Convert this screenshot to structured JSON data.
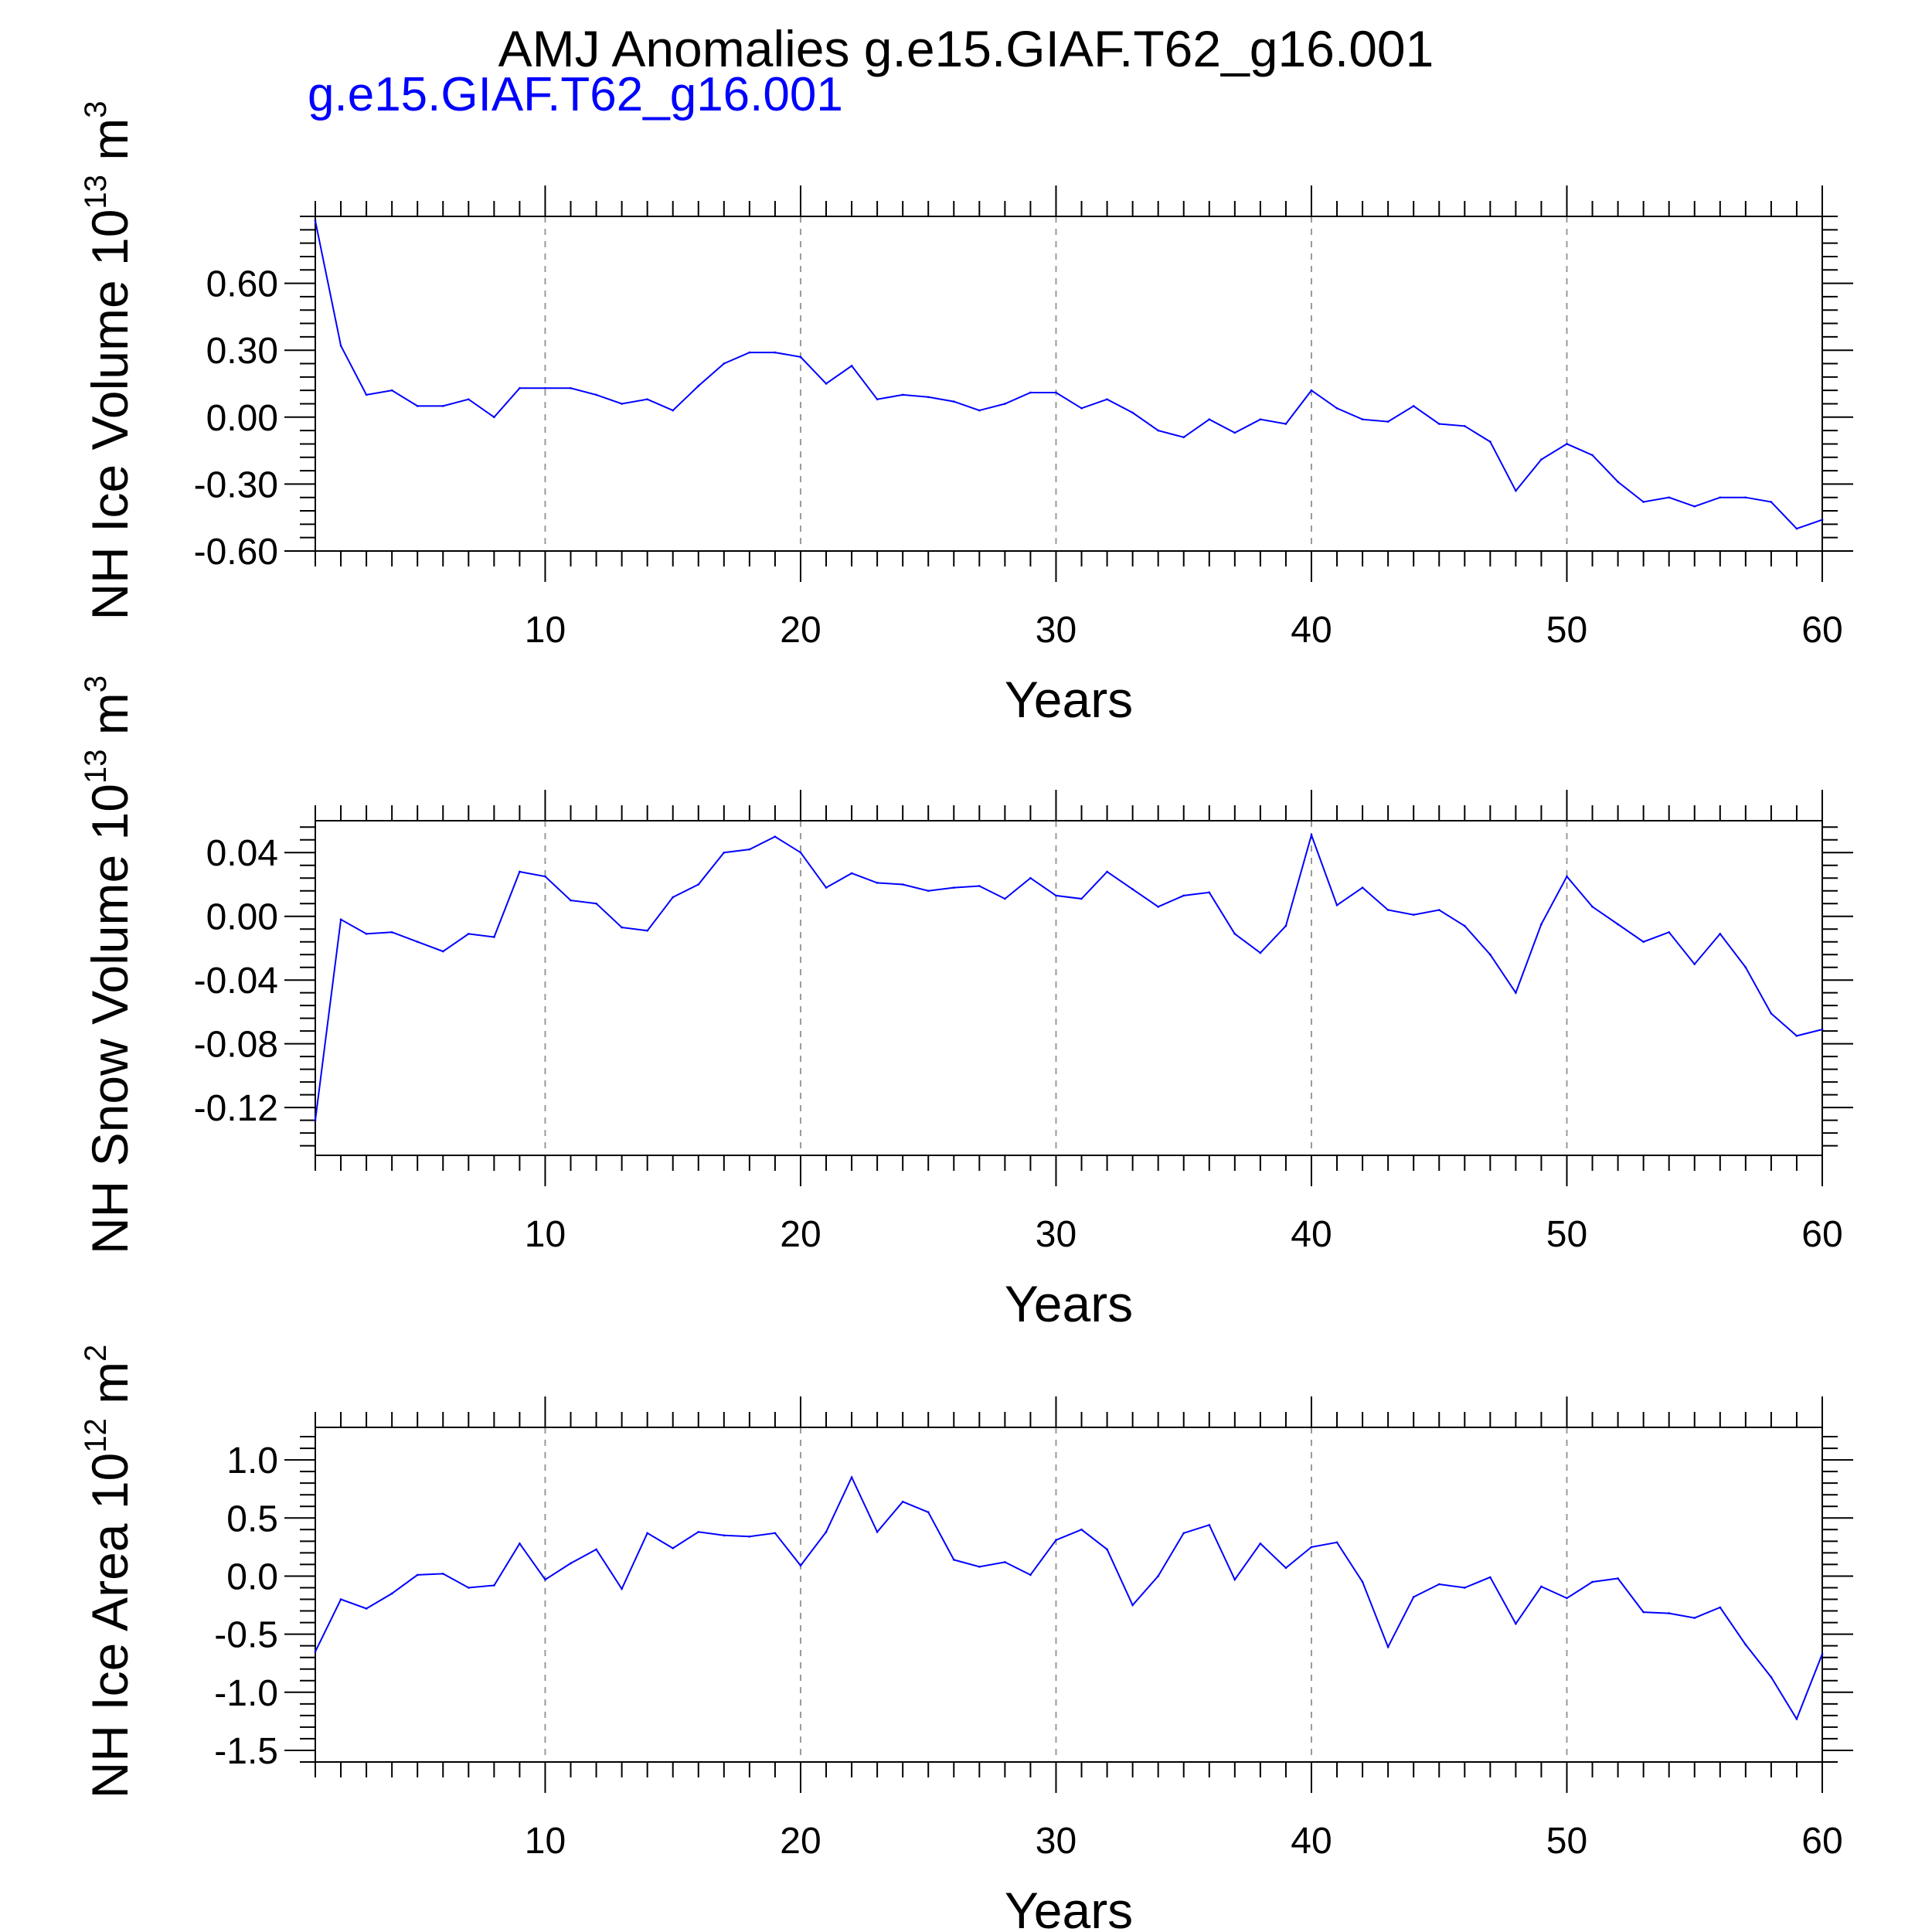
{
  "title": "AMJ Anomalies g.e15.GIAF.T62_g16.001",
  "subtitle": "g.e15.GIAF.T62_g16.001",
  "series_color": "#0000ff",
  "chart_data": [
    {
      "type": "line",
      "ylabel": "NH Ice Volume 10",
      "ylabel_exp": "13",
      "ylabel_unit": " m",
      "ylabel_unit_exp": "3",
      "xlabel": "Years",
      "xlim": [
        1,
        60
      ],
      "ylim": [
        -0.6,
        0.9
      ],
      "xticks": [
        10,
        20,
        30,
        40,
        50,
        60
      ],
      "yticks": [
        -0.6,
        -0.3,
        0.0,
        0.3,
        0.6
      ],
      "ytick_labels": [
        "-0.60",
        "-0.30",
        "0.00",
        "0.30",
        "0.60"
      ],
      "grid": "dashed vertical at major x ticks",
      "x": [
        1,
        2,
        3,
        4,
        5,
        6,
        7,
        8,
        9,
        10,
        11,
        12,
        13,
        14,
        15,
        16,
        17,
        18,
        19,
        20,
        21,
        22,
        23,
        24,
        25,
        26,
        27,
        28,
        29,
        30,
        31,
        32,
        33,
        34,
        35,
        36,
        37,
        38,
        39,
        40,
        41,
        42,
        43,
        44,
        45,
        46,
        47,
        48,
        49,
        50,
        51,
        52,
        53,
        54,
        55,
        56,
        57,
        58,
        59,
        60
      ],
      "values": [
        0.88,
        0.32,
        0.1,
        0.12,
        0.05,
        0.05,
        0.08,
        0.0,
        0.13,
        0.13,
        0.13,
        0.1,
        0.06,
        0.08,
        0.03,
        0.14,
        0.24,
        0.29,
        0.29,
        0.27,
        0.15,
        0.23,
        0.08,
        0.1,
        0.09,
        0.07,
        0.03,
        0.06,
        0.11,
        0.11,
        0.04,
        0.08,
        0.02,
        -0.06,
        -0.09,
        -0.01,
        -0.07,
        -0.01,
        -0.03,
        0.12,
        0.04,
        -0.01,
        -0.02,
        0.05,
        -0.03,
        -0.04,
        -0.11,
        -0.33,
        -0.19,
        -0.12,
        -0.17,
        -0.29,
        -0.38,
        -0.36,
        -0.4,
        -0.36,
        -0.36,
        -0.38,
        -0.5,
        -0.46
      ]
    },
    {
      "type": "line",
      "ylabel": "NH Snow Volume 10",
      "ylabel_exp": "13",
      "ylabel_unit": " m",
      "ylabel_unit_exp": "3",
      "xlabel": "Years",
      "xlim": [
        1,
        60
      ],
      "ylim": [
        -0.15,
        0.06
      ],
      "xticks": [
        10,
        20,
        30,
        40,
        50,
        60
      ],
      "yticks": [
        -0.12,
        -0.08,
        -0.04,
        0.0,
        0.04
      ],
      "ytick_labels": [
        "-0.12",
        "-0.08",
        "-0.04",
        "0.00",
        "0.04"
      ],
      "grid": "dashed vertical at major x ticks",
      "x": [
        1,
        2,
        3,
        4,
        5,
        6,
        7,
        8,
        9,
        10,
        11,
        12,
        13,
        14,
        15,
        16,
        17,
        18,
        19,
        20,
        21,
        22,
        23,
        24,
        25,
        26,
        27,
        28,
        29,
        30,
        31,
        32,
        33,
        34,
        35,
        36,
        37,
        38,
        39,
        40,
        41,
        42,
        43,
        44,
        45,
        46,
        47,
        48,
        49,
        50,
        51,
        52,
        53,
        54,
        55,
        56,
        57,
        58,
        59,
        60
      ],
      "values": [
        -0.128,
        -0.002,
        -0.011,
        -0.01,
        -0.016,
        -0.022,
        -0.011,
        -0.013,
        0.028,
        0.025,
        0.01,
        0.008,
        -0.007,
        -0.009,
        0.012,
        0.02,
        0.04,
        0.042,
        0.05,
        0.04,
        0.018,
        0.027,
        0.021,
        0.02,
        0.016,
        0.018,
        0.019,
        0.011,
        0.024,
        0.013,
        0.011,
        0.028,
        0.017,
        0.006,
        0.013,
        0.015,
        -0.011,
        -0.023,
        -0.006,
        0.051,
        0.007,
        0.018,
        0.004,
        0.001,
        0.004,
        -0.006,
        -0.024,
        -0.048,
        -0.005,
        0.025,
        0.006,
        -0.005,
        -0.016,
        -0.01,
        -0.03,
        -0.011,
        -0.032,
        -0.061,
        -0.075,
        -0.071
      ]
    },
    {
      "type": "line",
      "ylabel": "NH Ice Area 10",
      "ylabel_exp": "12",
      "ylabel_unit": " m",
      "ylabel_unit_exp": "2",
      "xlabel": "Years",
      "xlim": [
        1,
        60
      ],
      "ylim": [
        -1.6,
        1.28
      ],
      "xticks": [
        10,
        20,
        30,
        40,
        50,
        60
      ],
      "yticks": [
        -1.5,
        -1.0,
        -0.5,
        0.0,
        0.5,
        1.0
      ],
      "ytick_labels": [
        "-1.5",
        "-1.0",
        "-0.5",
        "0.0",
        "0.5",
        "1.0"
      ],
      "grid": "dashed vertical at major x ticks",
      "x": [
        1,
        2,
        3,
        4,
        5,
        6,
        7,
        8,
        9,
        10,
        11,
        12,
        13,
        14,
        15,
        16,
        17,
        18,
        19,
        20,
        21,
        22,
        23,
        24,
        25,
        26,
        27,
        28,
        29,
        30,
        31,
        32,
        33,
        34,
        35,
        36,
        37,
        38,
        39,
        40,
        41,
        42,
        43,
        44,
        45,
        46,
        47,
        48,
        49,
        50,
        51,
        52,
        53,
        54,
        55,
        56,
        57,
        58,
        59,
        60
      ],
      "values": [
        -0.65,
        -0.2,
        -0.28,
        -0.15,
        0.01,
        0.02,
        -0.1,
        -0.08,
        0.28,
        -0.03,
        0.11,
        0.23,
        -0.11,
        0.37,
        0.24,
        0.38,
        0.35,
        0.34,
        0.37,
        0.09,
        0.38,
        0.85,
        0.38,
        0.64,
        0.55,
        0.14,
        0.08,
        0.12,
        0.01,
        0.31,
        0.4,
        0.23,
        -0.25,
        0.0,
        0.37,
        0.44,
        -0.03,
        0.28,
        0.07,
        0.25,
        0.29,
        -0.05,
        -0.61,
        -0.18,
        -0.07,
        -0.1,
        -0.01,
        -0.41,
        -0.09,
        -0.19,
        -0.05,
        -0.02,
        -0.31,
        -0.32,
        -0.36,
        -0.27,
        -0.59,
        -0.87,
        -1.23,
        -0.67
      ]
    }
  ]
}
